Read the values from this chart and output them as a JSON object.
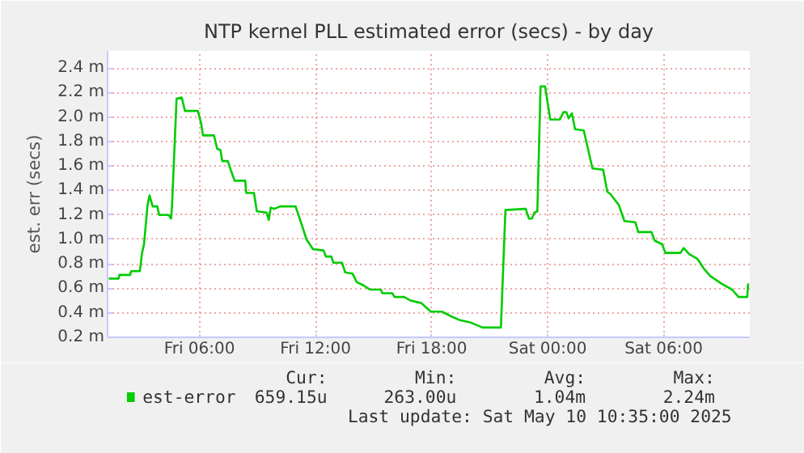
{
  "chart_data": {
    "type": "line",
    "title": "NTP kernel PLL estimated error (secs) - by day",
    "ylabel": "est. err (secs)",
    "x": [
      "2025-05-09T01:19",
      "2025-05-09T01:49",
      "2025-05-09T01:52",
      "2025-05-09T02:25",
      "2025-05-09T02:28",
      "2025-05-09T02:55",
      "2025-05-09T03:02",
      "2025-05-09T03:08",
      "2025-05-09T03:19",
      "2025-05-09T03:25",
      "2025-05-09T03:35",
      "2025-05-09T03:49",
      "2025-05-09T03:55",
      "2025-05-09T04:25",
      "2025-05-09T04:32",
      "2025-05-09T04:35",
      "2025-05-09T04:49",
      "2025-05-09T05:05",
      "2025-05-09T05:15",
      "2025-05-09T05:55",
      "2025-05-09T06:05",
      "2025-05-09T06:11",
      "2025-05-09T06:45",
      "2025-05-09T06:55",
      "2025-05-09T07:05",
      "2025-05-09T07:11",
      "2025-05-09T07:28",
      "2025-05-09T07:38",
      "2025-05-09T07:49",
      "2025-05-09T08:22",
      "2025-05-09T08:25",
      "2025-05-09T08:49",
      "2025-05-09T08:58",
      "2025-05-09T09:28",
      "2025-05-09T09:35",
      "2025-05-09T09:41",
      "2025-05-09T09:52",
      "2025-05-09T10:11",
      "2025-05-09T10:58",
      "2025-05-09T11:11",
      "2025-05-09T11:32",
      "2025-05-09T11:52",
      "2025-05-09T12:25",
      "2025-05-09T12:32",
      "2025-05-09T12:49",
      "2025-05-09T12:55",
      "2025-05-09T13:22",
      "2025-05-09T13:32",
      "2025-05-09T13:55",
      "2025-05-09T14:08",
      "2025-05-09T14:25",
      "2025-05-09T14:49",
      "2025-05-09T15:22",
      "2025-05-09T15:28",
      "2025-05-09T15:58",
      "2025-05-09T16:05",
      "2025-05-09T16:35",
      "2025-05-09T16:55",
      "2025-05-09T17:28",
      "2025-05-09T17:45",
      "2025-05-09T17:58",
      "2025-05-09T18:32",
      "2025-05-09T19:02",
      "2025-05-09T19:28",
      "2025-05-09T20:02",
      "2025-05-09T20:38",
      "2025-05-09T21:35",
      "2025-05-09T21:49",
      "2025-05-09T22:52",
      "2025-05-09T23:02",
      "2025-05-09T23:11",
      "2025-05-09T23:19",
      "2025-05-09T23:28",
      "2025-05-09T23:38",
      "2025-05-09T23:52",
      "2025-05-10T00:08",
      "2025-05-10T00:38",
      "2025-05-10T00:49",
      "2025-05-10T00:58",
      "2025-05-10T01:05",
      "2025-05-10T01:15",
      "2025-05-10T01:25",
      "2025-05-10T01:52",
      "2025-05-10T02:19",
      "2025-05-10T02:52",
      "2025-05-10T03:05",
      "2025-05-10T03:15",
      "2025-05-10T03:41",
      "2025-05-10T03:58",
      "2025-05-10T04:32",
      "2025-05-10T04:41",
      "2025-05-10T05:22",
      "2025-05-10T05:32",
      "2025-05-10T05:55",
      "2025-05-10T06:05",
      "2025-05-10T06:52",
      "2025-05-10T07:02",
      "2025-05-10T07:19",
      "2025-05-10T07:45",
      "2025-05-10T08:05",
      "2025-05-10T08:25",
      "2025-05-10T08:58",
      "2025-05-10T09:32",
      "2025-05-10T09:52",
      "2025-05-10T10:19",
      "2025-05-10T10:22"
    ],
    "series": [
      {
        "name": "est-error",
        "color": "#00cc00",
        "values": [
          0.68,
          0.68,
          0.71,
          0.71,
          0.74,
          0.74,
          0.89,
          0.96,
          1.28,
          1.36,
          1.27,
          1.27,
          1.2,
          1.2,
          1.17,
          1.28,
          2.15,
          2.16,
          2.05,
          2.05,
          1.95,
          1.85,
          1.85,
          1.74,
          1.73,
          1.64,
          1.64,
          1.56,
          1.48,
          1.48,
          1.38,
          1.38,
          1.23,
          1.22,
          1.16,
          1.26,
          1.25,
          1.27,
          1.27,
          1.17,
          1.0,
          0.92,
          0.91,
          0.86,
          0.86,
          0.81,
          0.81,
          0.73,
          0.72,
          0.65,
          0.63,
          0.59,
          0.59,
          0.56,
          0.56,
          0.53,
          0.53,
          0.5,
          0.48,
          0.44,
          0.41,
          0.41,
          0.37,
          0.34,
          0.32,
          0.28,
          0.28,
          1.24,
          1.25,
          1.17,
          1.17,
          1.22,
          1.23,
          2.25,
          2.25,
          1.98,
          1.98,
          2.04,
          2.04,
          1.99,
          2.03,
          1.9,
          1.89,
          1.58,
          1.57,
          1.39,
          1.37,
          1.28,
          1.15,
          1.14,
          1.06,
          1.06,
          0.99,
          0.96,
          0.89,
          0.89,
          0.93,
          0.88,
          0.84,
          0.76,
          0.7,
          0.64,
          0.59,
          0.53,
          0.53,
          0.64
        ]
      }
    ],
    "xlim": [
      "2025-05-09T01:15",
      "2025-05-10T10:27"
    ],
    "xticks": [
      {
        "value": "2025-05-09T06:00",
        "label": "Fri 06:00"
      },
      {
        "value": "2025-05-09T12:00",
        "label": "Fri 12:00"
      },
      {
        "value": "2025-05-09T18:00",
        "label": "Fri 18:00"
      },
      {
        "value": "2025-05-10T00:00",
        "label": "Sat 00:00"
      },
      {
        "value": "2025-05-10T06:00",
        "label": "Sat 06:00"
      }
    ],
    "ylim": [
      0.2,
      2.54
    ],
    "yticks": [
      {
        "value": 0.2,
        "label": "0.2 m"
      },
      {
        "value": 0.4,
        "label": "0.4 m"
      },
      {
        "value": 0.6,
        "label": "0.6 m"
      },
      {
        "value": 0.8,
        "label": "0.8 m"
      },
      {
        "value": 1.0,
        "label": "1.0 m"
      },
      {
        "value": 1.2,
        "label": "1.2 m"
      },
      {
        "value": 1.4,
        "label": "1.4 m"
      },
      {
        "value": 1.6,
        "label": "1.6 m"
      },
      {
        "value": 1.8,
        "label": "1.8 m"
      },
      {
        "value": 2.0,
        "label": "2.0 m"
      },
      {
        "value": 2.2,
        "label": "2.2 m"
      },
      {
        "value": 2.4,
        "label": "2.4 m"
      }
    ],
    "grid": true,
    "legend": "bottom left",
    "marker": "none",
    "line_style": "solid",
    "annotations": [
      "Cur:",
      "Min:",
      "Avg:",
      "Max:",
      "659.15u",
      "263.00u",
      "1.04m",
      "2.24m",
      "Last update: Sat May 10 10:35:00 2025"
    ]
  }
}
